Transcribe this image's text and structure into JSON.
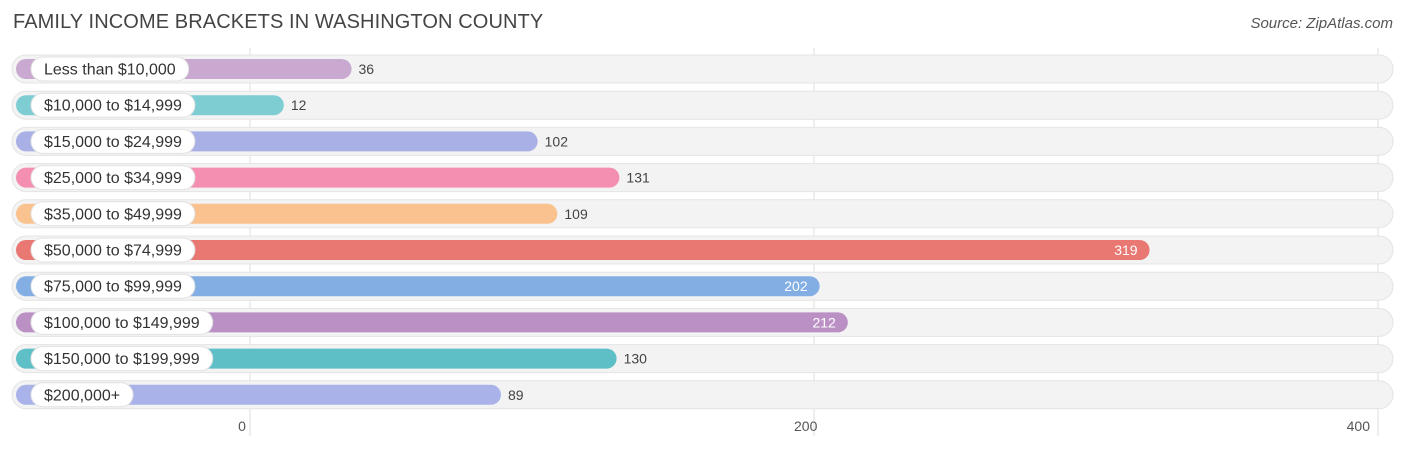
{
  "chart_data": {
    "type": "bar",
    "orientation": "horizontal",
    "title": "FAMILY INCOME BRACKETS IN WASHINGTON COUNTY",
    "source": "Source: ZipAtlas.com",
    "categories": [
      "Less than $10,000",
      "$10,000 to $14,999",
      "$15,000 to $24,999",
      "$25,000 to $34,999",
      "$35,000 to $49,999",
      "$50,000 to $74,999",
      "$75,000 to $99,999",
      "$100,000 to $149,999",
      "$150,000 to $199,999",
      "$200,000+"
    ],
    "values": [
      36,
      12,
      102,
      131,
      109,
      319,
      202,
      212,
      130,
      89
    ],
    "value_labels": [
      "36",
      "12",
      "102",
      "131",
      "109",
      "319",
      "202",
      "212",
      "130",
      "89"
    ],
    "colors": [
      "#c9a9d0",
      "#7ecdd3",
      "#a9b0e6",
      "#f48fb1",
      "#f9c28e",
      "#e97873",
      "#82aee3",
      "#bb91c5",
      "#5fbfc6",
      "#aab2ea"
    ],
    "xlim": [
      0,
      400
    ],
    "xticks": [
      0,
      200,
      400
    ],
    "xtick_labels": [
      "0",
      "200",
      "400"
    ],
    "xlabel": "",
    "ylabel": "",
    "grid": true
  }
}
